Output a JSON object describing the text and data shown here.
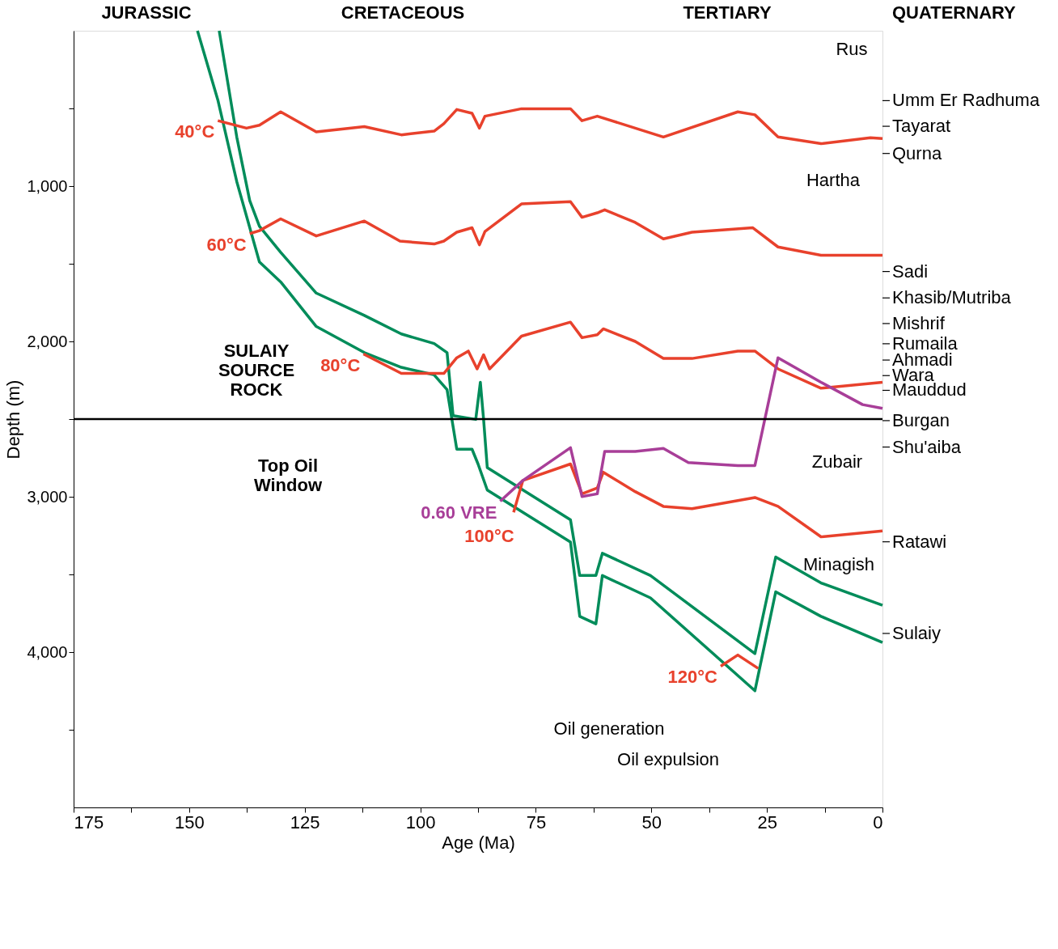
{
  "chart_data": {
    "type": "line",
    "xlabel": "Age (Ma)",
    "ylabel": "Depth (m)",
    "xlim": [
      175,
      0
    ],
    "ylim": [
      5000,
      0
    ],
    "xticks": [
      175,
      {
        "value": 162.5,
        "label": null
      },
      150,
      {
        "value": 137.5,
        "label": null
      },
      125,
      {
        "value": 112.5,
        "label": null
      },
      100,
      {
        "value": 87.5,
        "label": null
      },
      75,
      {
        "value": 62.5,
        "label": null
      },
      50,
      {
        "value": 37.5,
        "label": null
      },
      25,
      {
        "value": 12.5,
        "label": null
      },
      0
    ],
    "yticks": [
      {
        "value": 500,
        "label": null
      },
      {
        "value": 1000,
        "label": "1,000"
      },
      {
        "value": 1500,
        "label": null
      },
      {
        "value": 2000,
        "label": "2,000"
      },
      {
        "value": 2500,
        "label": null
      },
      {
        "value": 3000,
        "label": "3,000"
      },
      {
        "value": 3500,
        "label": null
      },
      {
        "value": 4000,
        "label": "4,000"
      },
      {
        "value": 4500,
        "label": null
      }
    ],
    "grid": false,
    "marker": "none",
    "line_style": "solid",
    "series": [
      {
        "color": "#008c5a",
        "x": [
          143.5,
          139.7,
          136.9,
          134.8,
          130.2,
          122.5,
          112.1,
          104.1,
          97.0,
          94.2,
          92.9,
          88.0,
          87.0,
          86.3,
          85.5,
          67.5,
          65.5,
          62.0,
          60.6,
          50.2,
          27.6,
          23.1,
          13.3,
          0
        ],
        "values": [
          0,
          684,
          1093,
          1258,
          1426,
          1689,
          1833,
          1952,
          2014,
          2072,
          2478,
          2502,
          2263,
          2502,
          2813,
          3148,
          3507,
          3507,
          3364,
          3507,
          4010,
          3388,
          3555,
          3699
        ]
      },
      {
        "color": "#008c5a",
        "x": [
          148.2,
          143.8,
          139.7,
          134.8,
          130.2,
          122.5,
          112.1,
          104.1,
          97.0,
          94.2,
          92.1,
          88.8,
          87.5,
          85.5,
          67.5,
          65.5,
          62.0,
          60.6,
          50.2,
          27.6,
          23.1,
          13.3,
          0
        ],
        "values": [
          0,
          445,
          971,
          1488,
          1617,
          1904,
          2072,
          2167,
          2215,
          2311,
          2694,
          2694,
          2789,
          2957,
          3292,
          3770,
          3818,
          3507,
          3651,
          4249,
          3612,
          3770,
          3938
        ]
      },
      {
        "name": "40°C",
        "color": "#e8412c",
        "x": [
          143.8,
          137.6,
          134.8,
          130.2,
          122.5,
          112.1,
          104.1,
          97.0,
          94.9,
          92.1,
          88.8,
          87.2,
          86.0,
          78.1,
          67.5,
          65.0,
          61.7,
          47.4,
          31.3,
          27.6,
          22.6,
          13.3,
          2.6,
          0
        ],
        "values": [
          579,
          627,
          608,
          522,
          651,
          617,
          670,
          646,
          598,
          507,
          531,
          627,
          550,
          502,
          502,
          579,
          550,
          684,
          522,
          541,
          684,
          727,
          689,
          694
        ]
      },
      {
        "name": "60°C",
        "color": "#e8412c",
        "x": [
          136.9,
          134.8,
          130.2,
          122.5,
          112.1,
          104.4,
          97.0,
          94.9,
          92.1,
          88.8,
          87.2,
          86.0,
          78.1,
          67.5,
          65.0,
          61.7,
          60.1,
          53.5,
          47.4,
          41.2,
          28.1,
          22.6,
          13.3,
          0
        ],
        "values": [
          1306,
          1287,
          1211,
          1321,
          1225,
          1354,
          1373,
          1354,
          1297,
          1268,
          1378,
          1292,
          1115,
          1100,
          1201,
          1172,
          1153,
          1234,
          1340,
          1297,
          1268,
          1392,
          1445,
          1445
        ]
      },
      {
        "name": "80°C",
        "color": "#e8412c",
        "x": [
          112.3,
          104.1,
          94.9,
          92.1,
          89.6,
          87.7,
          86.3,
          85.0,
          78.1,
          67.5,
          65.0,
          61.7,
          60.4,
          53.5,
          47.4,
          41.2,
          31.3,
          27.6,
          22.6,
          13.3,
          0
        ],
        "values": [
          2081,
          2206,
          2206,
          2105,
          2062,
          2177,
          2086,
          2177,
          1966,
          1876,
          1976,
          1957,
          1919,
          2000,
          2110,
          2110,
          2062,
          2062,
          2177,
          2301,
          2263
        ]
      },
      {
        "name": "100°C",
        "color": "#e8412c",
        "x": [
          79.8,
          77.8,
          67.5,
          65.0,
          61.7,
          60.4,
          53.5,
          47.4,
          41.2,
          27.6,
          22.6,
          13.3,
          0
        ],
        "values": [
          3100,
          2895,
          2789,
          2981,
          2943,
          2842,
          2967,
          3062,
          3077,
          3005,
          3062,
          3258,
          3220
        ]
      },
      {
        "name": "120°C",
        "color": "#e8412c",
        "x": [
          35.0,
          31.3,
          26.9
        ],
        "values": [
          4091,
          4019,
          4105
        ]
      },
      {
        "name": "0.60 VRE",
        "color": "#a83e98",
        "x": [
          82.7,
          77.8,
          67.5,
          65.0,
          61.7,
          60.1,
          53.5,
          47.4,
          42.0,
          31.3,
          27.6,
          22.6,
          13.3,
          4.3,
          0
        ],
        "values": [
          3029,
          2895,
          2684,
          2999,
          2981,
          2708,
          2708,
          2689,
          2780,
          2799,
          2799,
          2105,
          2263,
          2407,
          2431
        ]
      }
    ],
    "ref_lines": [
      {
        "axis": "y",
        "value": 2500,
        "label": "Top Oil\nWindow",
        "color": "#000000"
      }
    ],
    "annotations": [
      "JURASSIC",
      "CRETACEOUS",
      "TERTIARY",
      "QUATERNARY",
      "SULAIY\nSOURCE\nROCK",
      "Oil generation",
      "Oil expulsion",
      "Rus",
      "Hartha",
      "Zubair",
      "Minagish",
      "Umm Er Radhuma",
      "Tayarat",
      "Qurna",
      "Sadi",
      "Khasib/Mutriba",
      "Mishrif",
      "Rumaila",
      "Ahmadi",
      "Wara",
      "Mauddud",
      "Burgan",
      "Shu'aiba",
      "Ratawi",
      "Sulaiy"
    ]
  }
}
